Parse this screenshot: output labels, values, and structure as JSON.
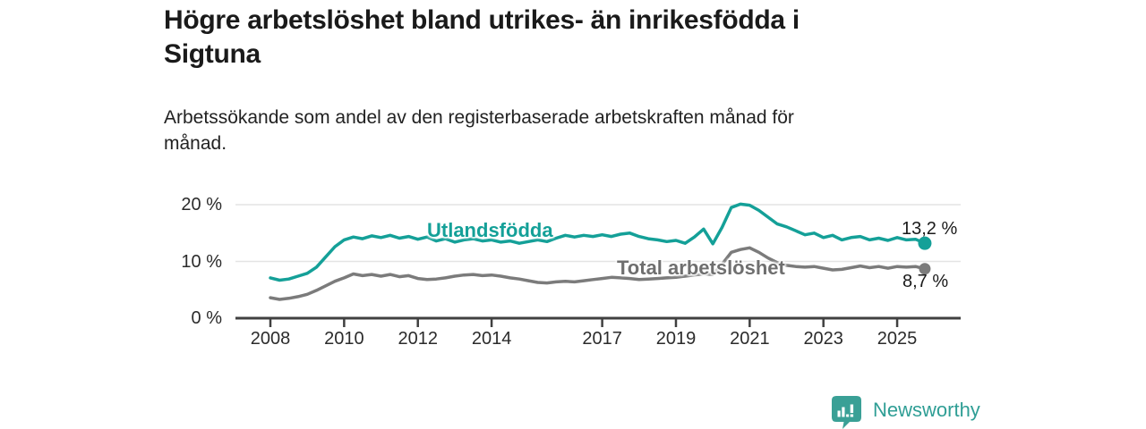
{
  "colors": {
    "background": "#ffffff",
    "accent_teal": "#14a098",
    "line_gray": "#7b7b7b",
    "series_label_gray": "#6f6f6f",
    "axis": "#404040",
    "grid": "#e4e4e4",
    "text_dark": "#1a1a1a",
    "tick_text": "#2b2b2b",
    "logo_teal": "#2f9e95"
  },
  "header": {
    "title": "Högre arbetslöshet bland utrikes- än inrikesfödda i\nSigtuna",
    "subtitle": "Arbetssökande som andel av den registerbaserade arbetskraften månad för\nmånad."
  },
  "footer": {
    "brand_name": "Newsworthy",
    "logo_icon": "bar-chart-speech-bubble-icon"
  },
  "chart_data": {
    "type": "line",
    "title": "Högre arbetslöshet bland utrikes- än inrikesfödda i Sigtuna",
    "subtitle": "Arbetssökande som andel av den registerbaserade arbetskraften månad för månad.",
    "unit": "%",
    "decimal_style": "comma",
    "grid": "horizontal-only",
    "legend_position": "inline-on-lines",
    "x_start": 2008.0,
    "x_step_years": 0.25,
    "x_end": 2025.75,
    "xlim": [
      2007.05,
      2026.7
    ],
    "ylim": [
      0,
      22
    ],
    "x_ticks": [
      {
        "year": 2008,
        "label": "2008"
      },
      {
        "year": 2010,
        "label": "2010"
      },
      {
        "year": 2012,
        "label": "2012"
      },
      {
        "year": 2014,
        "label": "2014"
      },
      {
        "year": 2017,
        "label": "2017"
      },
      {
        "year": 2019,
        "label": "2019"
      },
      {
        "year": 2021,
        "label": "2021"
      },
      {
        "year": 2023,
        "label": "2023"
      },
      {
        "year": 2025,
        "label": "2025"
      }
    ],
    "y_ticks": [
      {
        "value": 0,
        "label": "0 %"
      },
      {
        "value": 10,
        "label": "10 %"
      },
      {
        "value": 20,
        "label": "20 %"
      }
    ],
    "series": [
      {
        "name": "Utlandsfödda",
        "color": "#14a098",
        "line_width": 3.5,
        "end_value": 13.2,
        "end_label": "13,2 %",
        "values": [
          7.1,
          6.7,
          6.9,
          7.4,
          7.9,
          9.0,
          10.8,
          12.6,
          13.8,
          14.3,
          14.0,
          14.5,
          14.2,
          14.6,
          14.1,
          14.4,
          13.9,
          14.3,
          13.6,
          14.0,
          13.4,
          13.8,
          14.0,
          13.6,
          13.8,
          13.4,
          13.6,
          13.2,
          13.5,
          13.8,
          13.5,
          14.1,
          14.6,
          14.3,
          14.6,
          14.4,
          14.7,
          14.4,
          14.8,
          15.0,
          14.4,
          14.0,
          13.8,
          13.5,
          13.7,
          13.2,
          14.3,
          15.7,
          13.1,
          16.0,
          19.5,
          20.1,
          19.9,
          19.0,
          17.8,
          16.6,
          16.1,
          15.4,
          14.7,
          15.0,
          14.2,
          14.6,
          13.8,
          14.2,
          14.4,
          13.8,
          14.1,
          13.7,
          14.2,
          13.8,
          13.9,
          13.2
        ]
      },
      {
        "name": "Total arbetslöshet",
        "color": "#7b7b7b",
        "line_width": 3.5,
        "end_value": 8.7,
        "end_label": "8,7 %",
        "values": [
          3.6,
          3.3,
          3.5,
          3.8,
          4.2,
          4.9,
          5.7,
          6.5,
          7.1,
          7.8,
          7.5,
          7.7,
          7.4,
          7.7,
          7.3,
          7.5,
          7.0,
          6.8,
          6.9,
          7.1,
          7.4,
          7.6,
          7.7,
          7.5,
          7.6,
          7.4,
          7.1,
          6.9,
          6.6,
          6.3,
          6.2,
          6.4,
          6.5,
          6.4,
          6.6,
          6.8,
          7.0,
          7.2,
          7.1,
          7.0,
          6.8,
          6.9,
          7.0,
          7.1,
          7.2,
          7.4,
          7.6,
          7.8,
          7.7,
          9.5,
          11.6,
          12.1,
          12.4,
          11.6,
          10.6,
          9.8,
          9.3,
          9.1,
          9.0,
          9.1,
          8.8,
          8.5,
          8.6,
          8.9,
          9.2,
          8.9,
          9.1,
          8.8,
          9.1,
          9.0,
          9.1,
          8.7
        ]
      }
    ]
  }
}
